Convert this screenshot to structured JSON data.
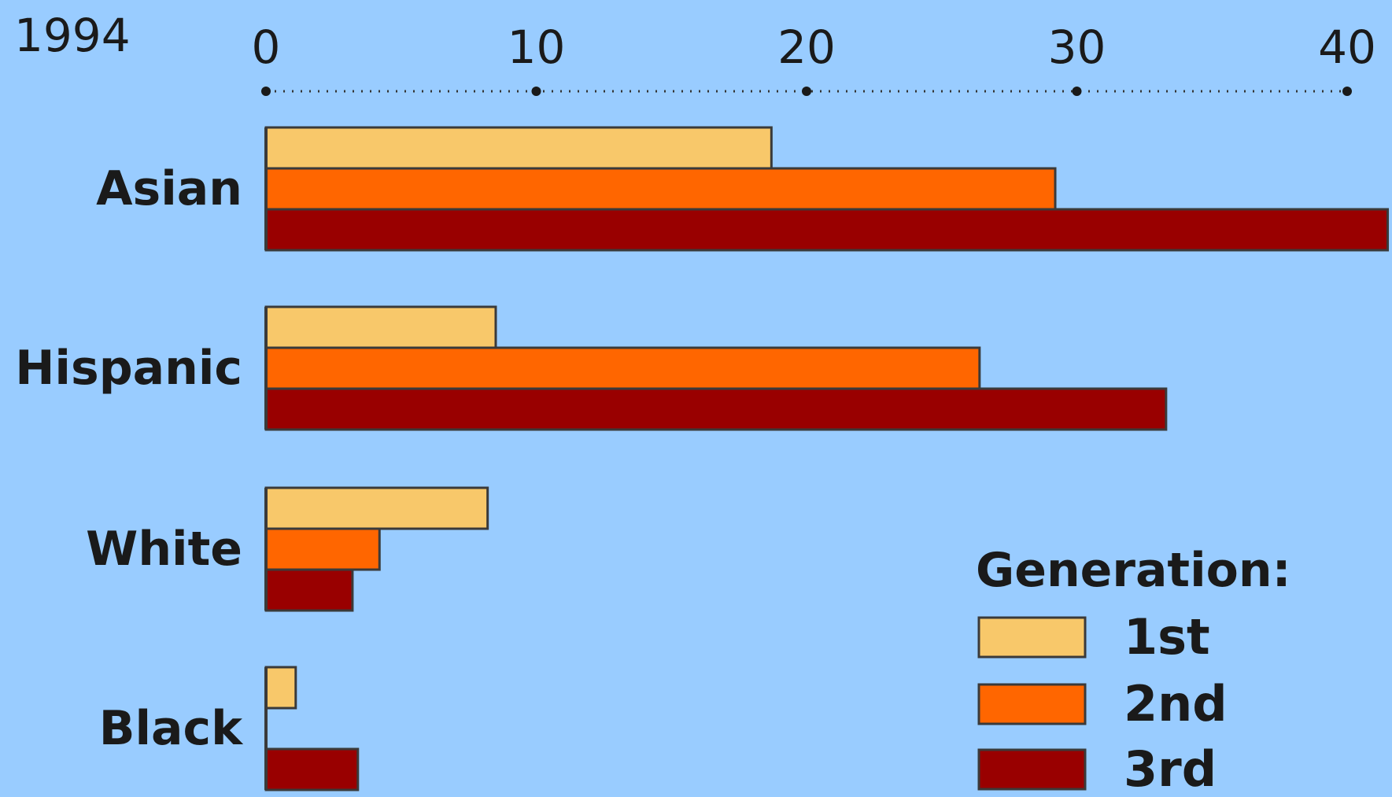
{
  "chart_data": {
    "type": "bar",
    "orientation": "horizontal",
    "title": "1994",
    "categories": [
      "Asian",
      "Hispanic",
      "White",
      "Black"
    ],
    "xlim": [
      0,
      40
    ],
    "x_ticks": [
      "0",
      "10",
      "20",
      "30",
      "40"
    ],
    "grid": false,
    "legend_position": "bottom-right",
    "legend_title": "Generation:",
    "series": [
      {
        "name": "1st",
        "color": "#f8c86a",
        "values": [
          18.7,
          8.5,
          8.2,
          1.1
        ]
      },
      {
        "name": "2nd",
        "color": "#ff6600",
        "values": [
          29.2,
          26.4,
          4.2,
          0
        ]
      },
      {
        "name": "3rd",
        "color": "#990000",
        "values": [
          41.5,
          33.3,
          3.2,
          3.4
        ]
      }
    ]
  }
}
